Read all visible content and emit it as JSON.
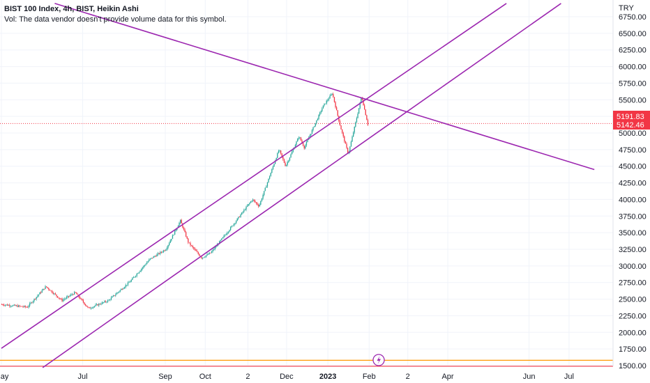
{
  "legend": {
    "title": "BIST 100 Index, 4h, BIST, Heikin Ashi",
    "volume_note": "Vol: The data vendor doesn't provide volume data for this symbol."
  },
  "currency": "TRY",
  "price_badges": {
    "upper": "5191.83",
    "lower": "5142.46",
    "color": "#f23645"
  },
  "colors": {
    "up": "#26a69a",
    "down": "#f23645",
    "trendline": "#9c27b0",
    "orange_line": "#ff9800",
    "grid": "#f0f3fa"
  },
  "chart_data": {
    "type": "candlestick",
    "title": "BIST 100 Index, 4h, BIST, Heikin Ashi",
    "y_axis": {
      "ticks": [
        "6750.00",
        "6500.00",
        "6250.00",
        "6000.00",
        "5750.00",
        "5500.00",
        "5250.00",
        "5000.00",
        "4750.00",
        "4500.00",
        "4250.00",
        "4000.00",
        "3750.00",
        "3500.00",
        "3250.00",
        "3000.00",
        "2750.00",
        "2500.00",
        "2250.00",
        "2000.00",
        "1750.00",
        "1500.00"
      ],
      "range": [
        1470,
        6920
      ]
    },
    "x_axis": {
      "ticks": [
        "May",
        "Jul",
        "Sep",
        "Oct",
        "2",
        "Dec",
        "2023",
        "Feb",
        "2",
        "Apr",
        "Jun",
        "Jul"
      ],
      "range": [
        "2022-05-01",
        "2023-07-20"
      ]
    },
    "price_path": [
      {
        "x": "2022-05-01",
        "y": 2420
      },
      {
        "x": "2022-05-20",
        "y": 2380
      },
      {
        "x": "2022-06-03",
        "y": 2690
      },
      {
        "x": "2022-06-15",
        "y": 2480
      },
      {
        "x": "2022-06-25",
        "y": 2600
      },
      {
        "x": "2022-07-05",
        "y": 2360
      },
      {
        "x": "2022-07-20",
        "y": 2480
      },
      {
        "x": "2022-08-05",
        "y": 2760
      },
      {
        "x": "2022-08-20",
        "y": 3100
      },
      {
        "x": "2022-09-01",
        "y": 3250
      },
      {
        "x": "2022-09-12",
        "y": 3680
      },
      {
        "x": "2022-09-18",
        "y": 3350
      },
      {
        "x": "2022-09-28",
        "y": 3120
      },
      {
        "x": "2022-10-05",
        "y": 3200
      },
      {
        "x": "2022-10-20",
        "y": 3580
      },
      {
        "x": "2022-11-05",
        "y": 4000
      },
      {
        "x": "2022-11-10",
        "y": 3900
      },
      {
        "x": "2022-11-25",
        "y": 4750
      },
      {
        "x": "2022-11-30",
        "y": 4500
      },
      {
        "x": "2022-12-10",
        "y": 4950
      },
      {
        "x": "2022-12-14",
        "y": 4780
      },
      {
        "x": "2022-12-28",
        "y": 5400
      },
      {
        "x": "2023-01-04",
        "y": 5600
      },
      {
        "x": "2023-01-10",
        "y": 5100
      },
      {
        "x": "2023-01-16",
        "y": 4680
      },
      {
        "x": "2023-01-26",
        "y": 5550
      },
      {
        "x": "2023-01-31",
        "y": 5100
      }
    ],
    "trendlines": [
      {
        "name": "descending",
        "from": {
          "x": "2022-06-10",
          "y": 6950
        },
        "to": {
          "x": "2023-07-20",
          "y": 4450
        }
      },
      {
        "name": "channel-upper",
        "from": {
          "x": "2022-05-01",
          "y": 1760
        },
        "to": {
          "x": "2023-05-15",
          "y": 6950
        }
      },
      {
        "name": "channel-lower",
        "from": {
          "x": "2022-06-01",
          "y": 1470
        },
        "to": {
          "x": "2023-06-25",
          "y": 6950
        }
      }
    ],
    "horizontal_lines": [
      {
        "y": 1580,
        "color": "#ff9800"
      },
      {
        "y": 1490,
        "color": "#f23645"
      }
    ],
    "current_price": 5142.46
  }
}
